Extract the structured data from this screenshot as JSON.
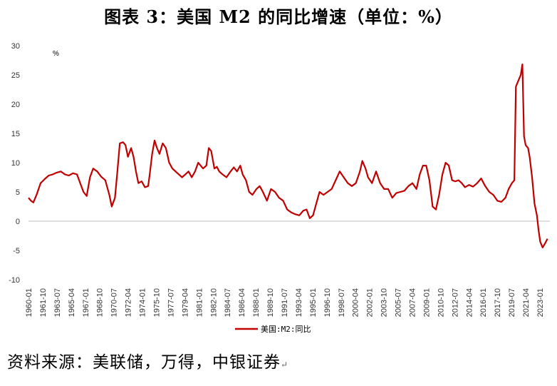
{
  "title": "图表 3：美国 M2 的同比增速（单位：%）",
  "source": "资料来源：美联储，万得，中银证券",
  "source_mark": "↵",
  "chart_data": {
    "type": "line",
    "unit_label": "%",
    "ylim": [
      -10,
      30
    ],
    "yticks": [
      "30",
      "25",
      "20",
      "15",
      "10",
      "5",
      "0",
      "-5",
      "-10"
    ],
    "ytick_values": [
      30,
      25,
      20,
      15,
      10,
      5,
      0,
      -5,
      -10
    ],
    "xlim": [
      1960.0,
      2024.5
    ],
    "grid": false,
    "legend_position": "bottom-center",
    "color": "#c00000",
    "xtick_labels": [
      "1960-01",
      "1961-10",
      "1963-07",
      "1965-04",
      "1967-01",
      "1968-10",
      "1970-07",
      "1972-04",
      "1974-01",
      "1975-10",
      "1977-07",
      "1979-04",
      "1981-01",
      "1982-10",
      "1984-07",
      "1986-04",
      "1988-01",
      "1989-10",
      "1991-07",
      "1993-04",
      "1995-01",
      "1996-10",
      "1998-07",
      "2000-04",
      "2002-01",
      "2003-10",
      "2005-07",
      "2007-04",
      "2009-01",
      "2010-10",
      "2012-07",
      "2014-04",
      "2016-01",
      "2017-10",
      "2019-07",
      "2021-04",
      "2023-01"
    ],
    "series": [
      {
        "name": "美国:M2:同比",
        "x": [
          1960.0,
          1960.3,
          1960.6,
          1961.0,
          1961.5,
          1962.0,
          1962.5,
          1963.0,
          1963.5,
          1964.0,
          1964.5,
          1965.0,
          1965.5,
          1966.0,
          1966.4,
          1966.8,
          1967.2,
          1967.6,
          1968.0,
          1968.5,
          1969.0,
          1969.5,
          1970.0,
          1970.3,
          1970.7,
          1971.0,
          1971.3,
          1971.7,
          1972.0,
          1972.3,
          1972.7,
          1973.0,
          1973.3,
          1973.6,
          1974.0,
          1974.4,
          1974.8,
          1975.0,
          1975.3,
          1975.6,
          1975.9,
          1976.2,
          1976.6,
          1977.0,
          1977.4,
          1977.8,
          1978.2,
          1978.6,
          1979.0,
          1979.4,
          1979.8,
          1980.2,
          1980.6,
          1981.0,
          1981.3,
          1981.6,
          1982.0,
          1982.3,
          1982.6,
          1983.0,
          1983.3,
          1983.6,
          1984.0,
          1984.5,
          1985.0,
          1985.4,
          1985.8,
          1986.2,
          1986.5,
          1986.9,
          1987.3,
          1987.7,
          1988.2,
          1988.6,
          1989.0,
          1989.5,
          1990.0,
          1990.5,
          1991.0,
          1991.5,
          1992.0,
          1992.5,
          1993.0,
          1993.5,
          1994.0,
          1994.4,
          1994.8,
          1995.2,
          1995.6,
          1996.0,
          1996.5,
          1997.0,
          1997.5,
          1998.0,
          1998.5,
          1999.0,
          1999.5,
          2000.0,
          2000.5,
          2001.0,
          2001.3,
          2001.7,
          2002.0,
          2002.5,
          2003.0,
          2003.5,
          2004.0,
          2004.5,
          2005.0,
          2005.5,
          2006.0,
          2006.5,
          2007.0,
          2007.5,
          2008.0,
          2008.4,
          2008.8,
          2009.2,
          2009.6,
          2010.0,
          2010.4,
          2010.8,
          2011.2,
          2011.6,
          2012.0,
          2012.4,
          2012.8,
          2013.2,
          2013.6,
          2014.0,
          2014.5,
          2015.0,
          2015.5,
          2016.0,
          2016.5,
          2017.0,
          2017.5,
          2018.0,
          2018.5,
          2019.0,
          2019.4,
          2019.8,
          2020.1,
          2020.3,
          2020.6,
          2020.9,
          2021.1,
          2021.3,
          2021.5,
          2021.8,
          2022.0,
          2022.3,
          2022.6,
          2022.9,
          2023.1,
          2023.3,
          2023.6,
          2023.9,
          2024.2
        ],
        "y": [
          4.0,
          3.5,
          3.2,
          4.5,
          6.5,
          7.2,
          7.8,
          8.0,
          8.3,
          8.5,
          8.0,
          7.8,
          8.2,
          8.0,
          6.5,
          5.0,
          4.3,
          7.5,
          9.0,
          8.5,
          7.6,
          7.0,
          4.5,
          2.5,
          4.0,
          8.5,
          13.3,
          13.5,
          13.0,
          11.0,
          12.5,
          11.0,
          8.5,
          6.5,
          6.8,
          5.8,
          6.0,
          8.0,
          11.5,
          13.8,
          12.5,
          11.5,
          13.3,
          12.5,
          10.0,
          9.0,
          8.5,
          8.0,
          7.5,
          8.0,
          8.5,
          7.5,
          8.5,
          10.0,
          9.5,
          9.0,
          9.5,
          12.5,
          12.0,
          9.0,
          9.3,
          8.5,
          8.0,
          7.5,
          8.5,
          9.2,
          8.5,
          9.5,
          8.0,
          7.0,
          5.0,
          4.5,
          5.5,
          6.0,
          5.0,
          3.5,
          5.5,
          5.0,
          4.0,
          3.5,
          2.0,
          1.5,
          1.2,
          1.0,
          1.8,
          2.0,
          0.5,
          1.0,
          3.0,
          5.0,
          4.5,
          5.0,
          5.5,
          7.0,
          8.5,
          7.5,
          6.5,
          6.0,
          6.5,
          8.5,
          10.3,
          9.0,
          7.5,
          6.5,
          8.5,
          6.5,
          5.5,
          5.5,
          4.0,
          4.8,
          5.0,
          5.2,
          6.0,
          6.5,
          5.5,
          8.0,
          9.5,
          9.5,
          7.0,
          2.5,
          2.0,
          4.5,
          8.0,
          10.0,
          9.5,
          7.0,
          6.8,
          7.0,
          6.5,
          5.8,
          6.2,
          5.9,
          6.5,
          7.3,
          6.0,
          5.0,
          4.5,
          3.5,
          3.3,
          4.0,
          5.5,
          6.5,
          7.0,
          23.0,
          24.0,
          25.0,
          26.8,
          14.5,
          13.0,
          12.5,
          11.0,
          7.5,
          3.0,
          1.0,
          -1.5,
          -3.5,
          -4.5,
          -3.8,
          -3.0
        ]
      }
    ]
  }
}
